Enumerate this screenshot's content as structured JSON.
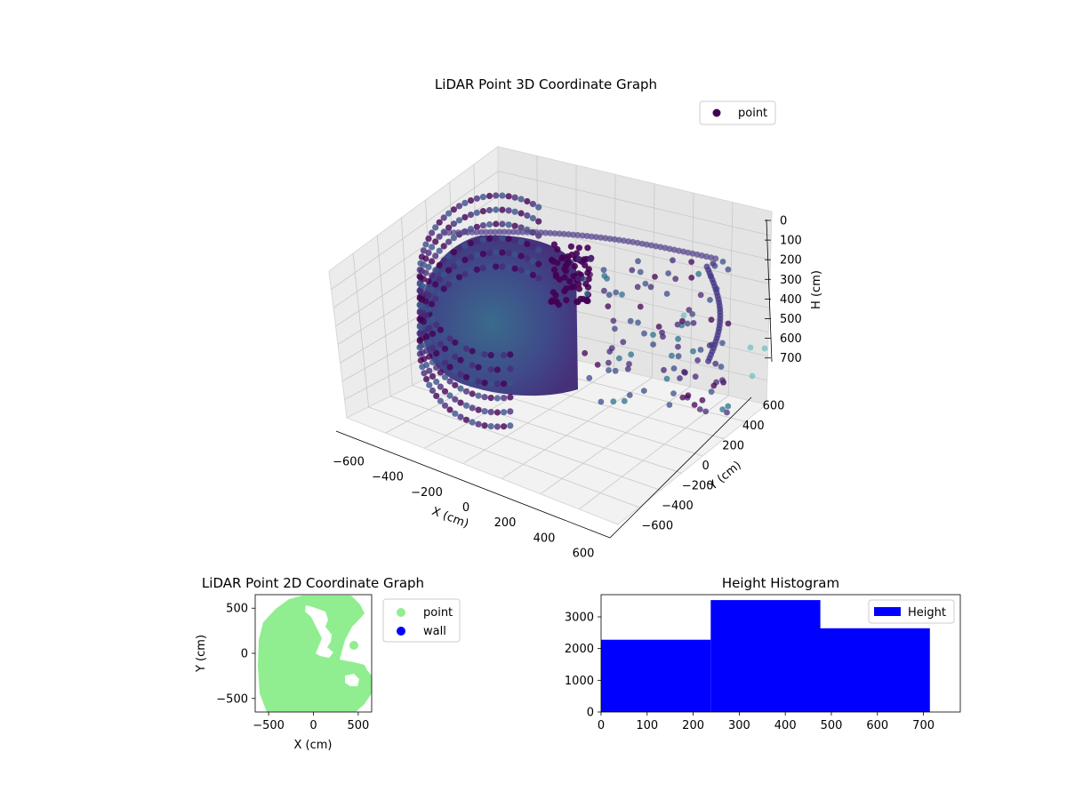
{
  "chart_data": [
    {
      "type": "scatter",
      "projection": "3d",
      "title": "LiDAR Point 3D Coordinate Graph",
      "xlabel": "X (cm)",
      "ylabel": "Y (cm)",
      "zlabel": "H (cm)",
      "xticks": [
        "−600",
        "−400",
        "−200",
        "0",
        "200",
        "400",
        "600"
      ],
      "yticks": [
        "−600",
        "−400",
        "−200",
        "0",
        "200",
        "400",
        "600"
      ],
      "zticks": [
        "0",
        "100",
        "200",
        "300",
        "400",
        "500",
        "600",
        "700"
      ],
      "xlim": [
        -650,
        650
      ],
      "ylim": [
        -650,
        650
      ],
      "zlim": [
        0,
        750
      ],
      "z_inverted": true,
      "grid": true,
      "legend": {
        "placement": "top-right",
        "entries": [
          {
            "label": "point",
            "color": "#440154"
          }
        ]
      },
      "colormap": "viridis",
      "series": [
        {
          "name": "point",
          "description_points": "dense cylindrical wall of points radius ~550 cm on the negative-X side, sparse scattered points on the positive-X side"
        }
      ]
    },
    {
      "type": "scatter",
      "title": "LiDAR Point 2D Coordinate Graph",
      "xlabel": "X (cm)",
      "ylabel": "Y (cm)",
      "xticks": [
        "−500",
        "0",
        "500"
      ],
      "yticks": [
        "500",
        "0",
        "−500"
      ],
      "xlim": [
        -650,
        650
      ],
      "ylim": [
        -650,
        650
      ],
      "legend": {
        "placement": "outside-right",
        "entries": [
          {
            "label": "point",
            "color": "#90ee90"
          },
          {
            "label": "wall",
            "color": "#0000ff"
          }
        ]
      }
    },
    {
      "type": "bar",
      "subtype": "histogram",
      "title": "Height Histogram",
      "xticks": [
        "0",
        "100",
        "200",
        "300",
        "400",
        "500",
        "600",
        "700"
      ],
      "yticks": [
        "0",
        "1000",
        "2000",
        "3000"
      ],
      "xlim": [
        0,
        780
      ],
      "ylim": [
        0,
        3700
      ],
      "bins": [
        {
          "x0": 0,
          "x1": 238,
          "count": 2280
        },
        {
          "x0": 238,
          "x1": 476,
          "count": 3530
        },
        {
          "x0": 476,
          "x1": 714,
          "count": 2640
        }
      ],
      "color": "#0000ff",
      "legend": {
        "placement": "top-right",
        "entries": [
          {
            "label": "Height",
            "color": "#0000ff"
          }
        ]
      }
    }
  ]
}
